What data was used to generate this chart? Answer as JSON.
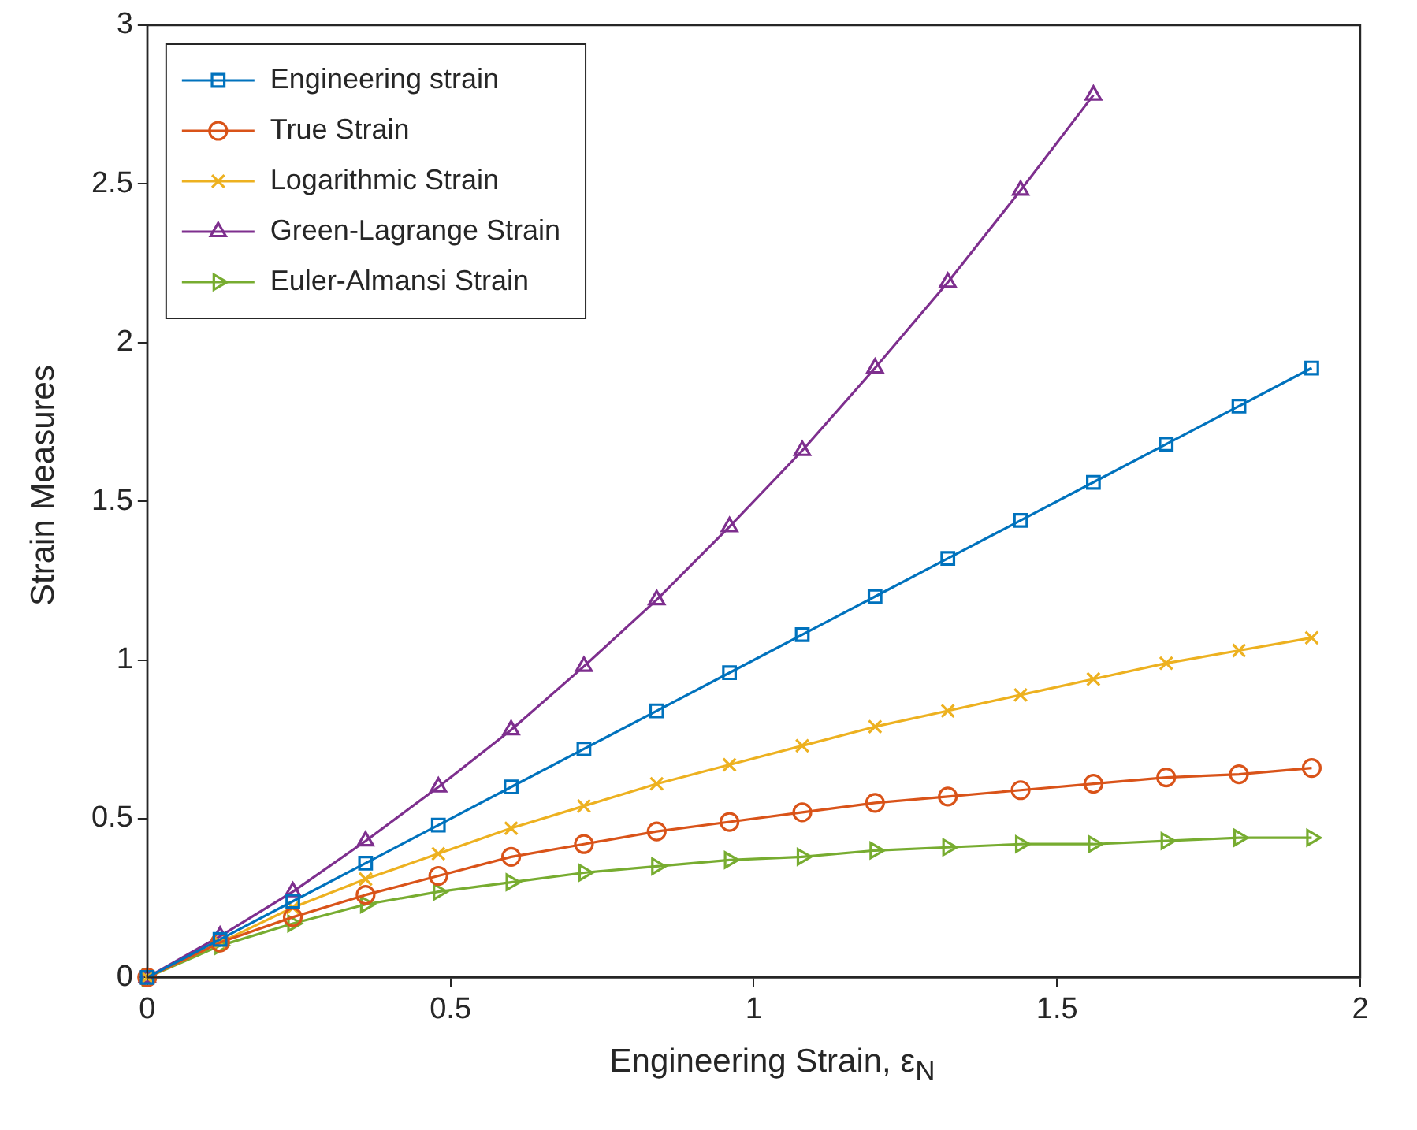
{
  "chart_data": {
    "type": "line",
    "xlabel": "Engineering Strain, ε$_{N}$",
    "ylabel": "Strain Measures",
    "x": [
      0,
      0.12,
      0.24,
      0.36,
      0.48,
      0.6,
      0.72,
      0.84,
      0.96,
      1.08,
      1.2,
      1.32,
      1.44,
      1.56,
      1.68,
      1.8,
      1.92
    ],
    "series": [
      {
        "name": "Engineering strain",
        "color": "#0072bd",
        "marker": "square",
        "values": [
          0,
          0.12,
          0.24,
          0.36,
          0.48,
          0.6,
          0.72,
          0.84,
          0.96,
          1.08,
          1.2,
          1.32,
          1.44,
          1.56,
          1.68,
          1.8,
          1.92
        ]
      },
      {
        "name": "True Strain",
        "color": "#d95319",
        "marker": "circle",
        "values": [
          0,
          0.11,
          0.19,
          0.26,
          0.32,
          0.38,
          0.42,
          0.46,
          0.49,
          0.52,
          0.55,
          0.57,
          0.59,
          0.61,
          0.63,
          0.64,
          0.66
        ]
      },
      {
        "name": "Logarithmic Strain",
        "color": "#edb120",
        "marker": "cross",
        "values": [
          0,
          0.11,
          0.22,
          0.31,
          0.39,
          0.47,
          0.54,
          0.61,
          0.67,
          0.73,
          0.79,
          0.84,
          0.89,
          0.94,
          0.99,
          1.03,
          1.07
        ]
      },
      {
        "name": "Green-Lagrange Strain",
        "color": "#7e2f8e",
        "marker": "triangle",
        "values": [
          0,
          0.13,
          0.27,
          0.43,
          0.6,
          0.78,
          0.98,
          1.19,
          1.42,
          1.66,
          1.92,
          2.19,
          2.48,
          2.78,
          null,
          null,
          null
        ]
      },
      {
        "name": "Euler-Almansi Strain",
        "color": "#77ac30",
        "marker": "triangle-right",
        "values": [
          0,
          0.1,
          0.17,
          0.23,
          0.27,
          0.3,
          0.33,
          0.35,
          0.37,
          0.38,
          0.4,
          0.41,
          0.42,
          0.42,
          0.43,
          0.44,
          0.44
        ]
      }
    ],
    "xlim": [
      0,
      2
    ],
    "xticks": [
      0,
      0.5,
      1,
      1.5,
      2
    ],
    "ylim": [
      0,
      3
    ],
    "yticks": [
      0,
      0.5,
      1,
      1.5,
      2,
      2.5,
      3
    ],
    "grid": false,
    "legend": "top left",
    "line_style": "solid"
  }
}
